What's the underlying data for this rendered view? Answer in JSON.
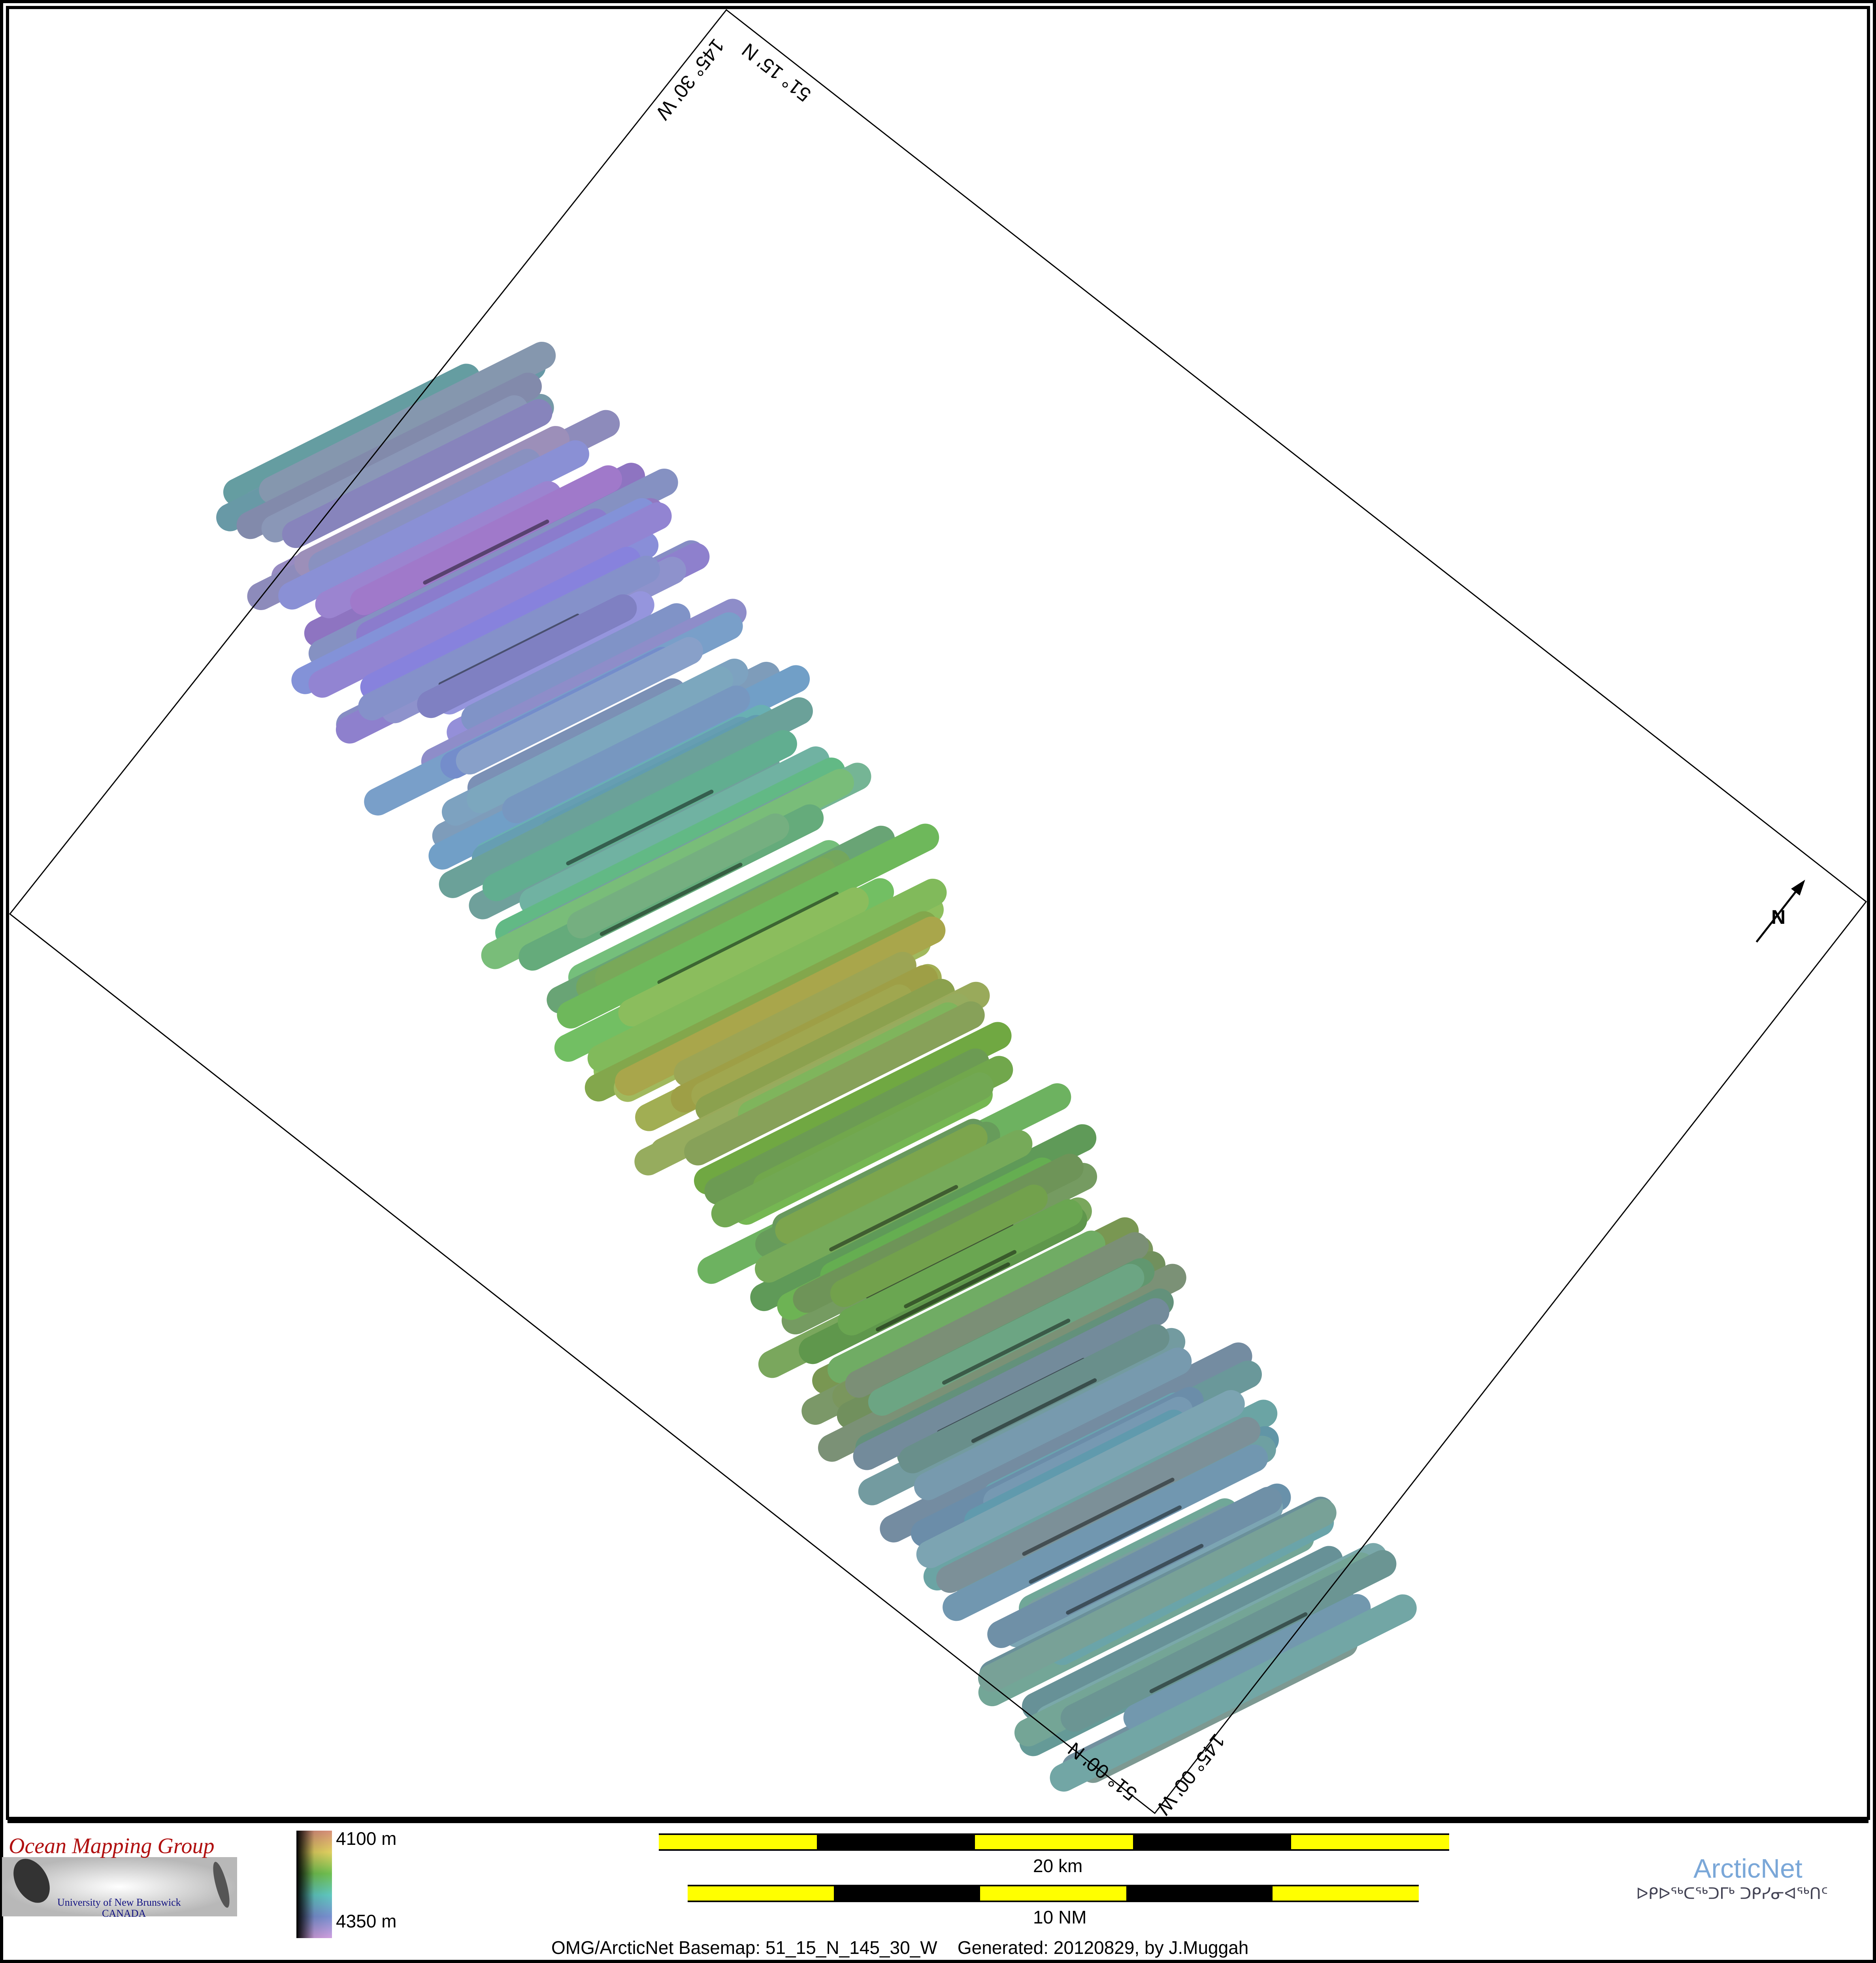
{
  "map": {
    "graticule_labels": {
      "top_left_edge": "145° 30' W",
      "top_right_edge": "51° 15' N",
      "bottom_left_edge": "51° 00' N",
      "bottom_right_edge": "145° 00' W"
    },
    "north_arrow": "N"
  },
  "legend": {
    "depth_min": "4100 m",
    "depth_max": "4350 m",
    "colors": [
      "#d89a7a",
      "#e8d060",
      "#70c050",
      "#60c0b0",
      "#7890d0",
      "#c090d8"
    ]
  },
  "scale_bars": {
    "km_label": "20 km",
    "nm_label": "10 NM",
    "colors": {
      "fill": "#ffff00",
      "alt": "#000000"
    }
  },
  "logos": {
    "omg_title": "Ocean Mapping Group",
    "omg_sub1": "University of New Brunswick",
    "omg_sub2": "CANADA",
    "arcticnet": "ArcticNet",
    "arcticnet_syllabics": "ᐅᑭᐅᖅᑕᖅᑐᒥᒃ ᑐᑭᓯᓂᐊᖅᑎᑦ"
  },
  "caption": "OMG/ArcticNet Basemap: 51_15_N_145_30_W    Generated: 20120829, by J.Muggah"
}
